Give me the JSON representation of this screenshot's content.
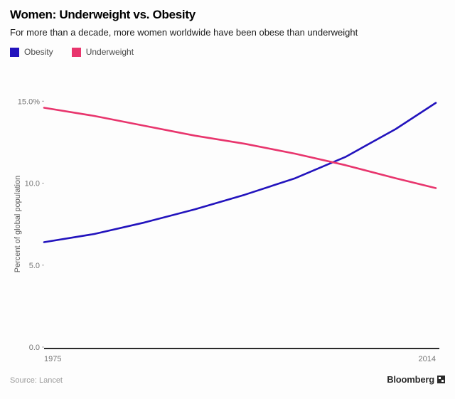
{
  "header": {
    "title": "Women: Underweight vs. Obesity",
    "subtitle": "For more than a decade, more women worldwide have been obese than underweight"
  },
  "legend": {
    "items": [
      {
        "label": "Obesity",
        "color": "#2213bd"
      },
      {
        "label": "Underweight",
        "color": "#e8356d"
      }
    ]
  },
  "footer": {
    "source": "Source: Lancet",
    "brand": "Bloomberg"
  },
  "chart_data": {
    "type": "line",
    "title": "Women: Underweight vs. Obesity",
    "subtitle": "For more than a decade, more women worldwide have been obese than underweight",
    "xlabel": "",
    "ylabel": "Percent of global population",
    "x": [
      1975,
      1980,
      1985,
      1990,
      1995,
      2000,
      2005,
      2010,
      2014
    ],
    "series": [
      {
        "name": "Obesity",
        "color": "#2213bd",
        "values": [
          6.4,
          6.9,
          7.6,
          8.4,
          9.3,
          10.3,
          11.6,
          13.3,
          14.9
        ]
      },
      {
        "name": "Underweight",
        "color": "#e8356d",
        "values": [
          14.6,
          14.1,
          13.5,
          12.9,
          12.4,
          11.8,
          11.1,
          10.3,
          9.7
        ]
      }
    ],
    "xlim": [
      1975,
      2014
    ],
    "ylim": [
      0,
      15.1
    ],
    "yticks": [
      {
        "label": "15.0%",
        "value": 15
      },
      {
        "label": "10.0",
        "value": 10
      },
      {
        "label": "5.0",
        "value": 5
      },
      {
        "label": "0.0",
        "value": 0
      }
    ],
    "xticks": [
      {
        "label": "1975",
        "value": 1975
      },
      {
        "label": "2014",
        "value": 2014
      }
    ],
    "grid": false,
    "legend_position": "top-left"
  }
}
